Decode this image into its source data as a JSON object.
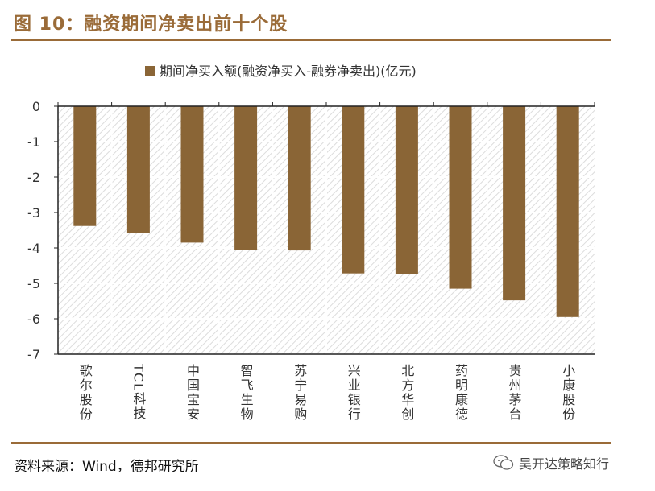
{
  "figure": {
    "title": "图 10：融资期间净卖出前十个股",
    "source": "资料来源：Wind，德邦研究所",
    "watermark": "吴开达策略知行"
  },
  "colors": {
    "accent": "#9a6b38",
    "bar": "#8a6536",
    "axis": "#222222",
    "text": "#333333",
    "hatch": "#dcdcdc"
  },
  "chart_data": {
    "type": "bar",
    "title": "",
    "xlabel": "",
    "ylabel": "",
    "legend": {
      "label": "期间净买入额(融资净买入-融券净卖出)(亿元)",
      "position": "top"
    },
    "ylim": [
      -7,
      0
    ],
    "yticks": [
      0,
      -1,
      -2,
      -3,
      -4,
      -5,
      -6,
      -7
    ],
    "grid": true,
    "categories": [
      "歌尔股份",
      "TCL科技",
      "中国宝安",
      "智飞生物",
      "苏宁易购",
      "兴业银行",
      "北方华创",
      "药明康德",
      "贵州茅台",
      "小康股份"
    ],
    "series": [
      {
        "name": "期间净买入额(融资净买入-融券净卖出)(亿元)",
        "values": [
          -3.38,
          -3.58,
          -3.85,
          -4.05,
          -4.07,
          -4.72,
          -4.74,
          -5.15,
          -5.48,
          -5.95
        ]
      }
    ]
  }
}
